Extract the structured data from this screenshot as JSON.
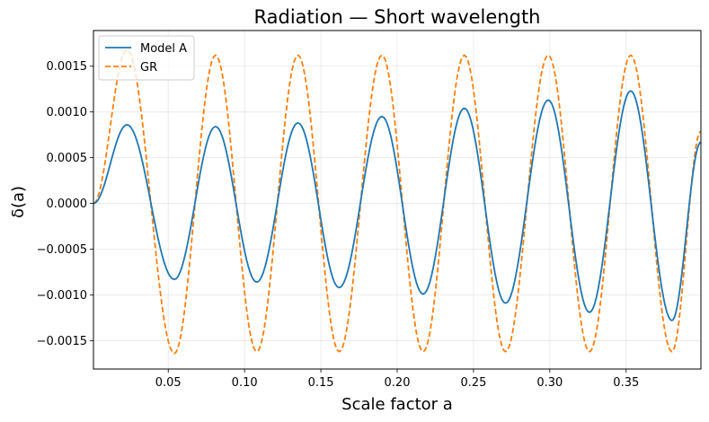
{
  "chart_data": {
    "type": "line",
    "title": "Radiation — Short wavelength",
    "xlabel": "Scale factor a",
    "ylabel": "δ(a)",
    "xlim": [
      0.001,
      0.399
    ],
    "ylim": [
      -0.00181,
      0.00189
    ],
    "grid": true,
    "legend_position": "top-left",
    "x_ticks": [
      0.05,
      0.1,
      0.15,
      0.2,
      0.25,
      0.3,
      0.35
    ],
    "x_tick_labels": [
      "0.05",
      "0.10",
      "0.15",
      "0.20",
      "0.25",
      "0.30",
      "0.35"
    ],
    "y_ticks": [
      -0.0015,
      -0.001,
      -0.0005,
      0.0,
      0.0005,
      0.001,
      0.0015
    ],
    "y_tick_labels": [
      "−0.0015",
      "−0.0010",
      "−0.0005",
      "0.0000",
      "0.0005",
      "0.0010",
      "0.0015"
    ],
    "series": [
      {
        "name": "Model A",
        "color": "#1f77b4",
        "style": "solid",
        "x": [
          0.001,
          0.023,
          0.054,
          0.081,
          0.108,
          0.135,
          0.162,
          0.19,
          0.217,
          0.244,
          0.271,
          0.299,
          0.326,
          0.353,
          0.38,
          0.399
        ],
        "values": [
          0.0,
          0.00086,
          -0.00083,
          0.00084,
          -0.00086,
          0.00088,
          -0.00092,
          0.00095,
          -0.00099,
          0.00104,
          -0.00109,
          0.00113,
          -0.00119,
          0.00123,
          -0.00128,
          0.00067
        ]
      },
      {
        "name": "GR",
        "color": "#ff7f0e",
        "style": "dashed",
        "x": [
          0.001,
          0.023,
          0.054,
          0.081,
          0.108,
          0.135,
          0.162,
          0.19,
          0.217,
          0.244,
          0.271,
          0.299,
          0.326,
          0.353,
          0.38,
          0.399
        ],
        "values": [
          0.0,
          0.00168,
          -0.00164,
          0.00162,
          -0.00162,
          0.00162,
          -0.00162,
          0.00162,
          -0.00162,
          0.00162,
          -0.00162,
          0.00162,
          -0.00162,
          0.00162,
          -0.00162,
          0.00079
        ]
      }
    ]
  }
}
